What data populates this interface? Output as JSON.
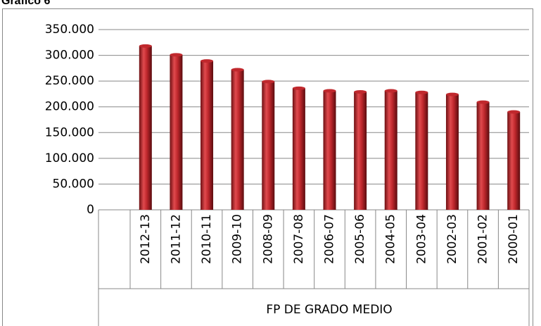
{
  "chart_data": {
    "type": "bar",
    "title": "Gráfico 6",
    "group_label": "FP DE GRADO MEDIO",
    "categories": [
      "2012-13",
      "2011-12",
      "2010-11",
      "2009-10",
      "2008-09",
      "2007-08",
      "2006-07",
      "2005-06",
      "2004-05",
      "2003-04",
      "2002-03",
      "2001-02",
      "2000-01"
    ],
    "values": [
      318000,
      301000,
      289000,
      272000,
      249000,
      236000,
      231000,
      229000,
      231000,
      228000,
      224000,
      209000,
      190000
    ],
    "color": "#c0282d",
    "ylim": [
      0,
      350000
    ],
    "yticks": [
      0,
      {
        "value": 50000,
        "label": "50.000"
      },
      {
        "value": 100000,
        "label": "100.000"
      },
      {
        "value": 150000,
        "label": "150.000"
      },
      {
        "value": 200000,
        "label": "200.000"
      },
      {
        "value": 250000,
        "label": "250.000"
      },
      {
        "value": 300000,
        "label": "300.000"
      },
      {
        "value": 350000,
        "label": "350.000"
      }
    ],
    "grid": true
  }
}
